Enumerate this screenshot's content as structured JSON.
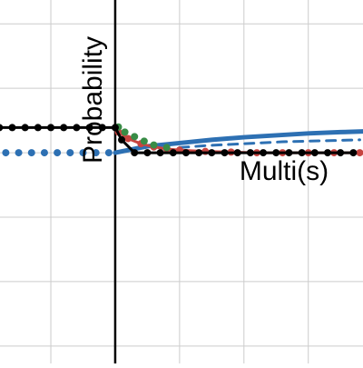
{
  "chart_data": {
    "type": "line",
    "xlabel": "Multi(s)",
    "ylabel": "Probability",
    "xlim": [
      -1.79,
      3.85
    ],
    "ylim": [
      -3.27,
      2.37
    ],
    "xticks": [
      -1,
      0,
      1,
      2,
      3
    ],
    "yticks": [
      -3,
      -2,
      -1,
      0,
      1,
      2
    ],
    "grid": true,
    "series": [
      {
        "color": "#2d70b3",
        "style": "dots",
        "x": [
          -1.7,
          -1.5,
          -1.3,
          -1.1,
          -0.9,
          -0.7,
          -0.5,
          -0.3,
          -0.1
        ],
        "values": [
          0,
          0,
          0,
          0,
          0,
          0,
          0,
          0,
          0
        ]
      },
      {
        "color": "#2d70b3",
        "style": "line",
        "x": [
          0,
          0.5,
          1,
          1.5,
          2,
          2.5,
          3,
          3.5,
          3.85
        ],
        "values": [
          0,
          0.1,
          0.15,
          0.2,
          0.24,
          0.27,
          0.3,
          0.32,
          0.33
        ]
      },
      {
        "color": "#2d70b3",
        "style": "dashed",
        "x": [
          1.0,
          1.4,
          1.8,
          2.2,
          2.6,
          3.0,
          3.4,
          3.8
        ],
        "values": [
          0.08,
          0.11,
          0.13,
          0.15,
          0.17,
          0.18,
          0.19,
          0.2
        ]
      },
      {
        "color": "#c74440",
        "style": "both",
        "x": [
          0.05,
          0.2,
          0.4,
          0.6,
          0.8,
          1.0,
          1.4,
          1.8,
          2.2,
          2.6,
          3.0,
          3.4,
          3.8
        ],
        "values": [
          0.32,
          0.22,
          0.14,
          0.09,
          0.06,
          0.04,
          0.02,
          0.01,
          0,
          0,
          0,
          0,
          0
        ]
      },
      {
        "color": "#388c46",
        "style": "dots",
        "x": [
          0.05,
          0.15,
          0.3,
          0.45,
          0.6,
          0.8
        ],
        "values": [
          0.4,
          0.32,
          0.25,
          0.18,
          0.12,
          0.08
        ]
      },
      {
        "color": "#000000",
        "style": "both",
        "x": [
          -1.8,
          -1.6,
          -1.4,
          -1.2,
          -1.0,
          -0.8,
          -0.6,
          -0.4,
          -0.2,
          0,
          0.1,
          0.3,
          0.5,
          0.7,
          0.9,
          1.1,
          1.3,
          1.5,
          1.7,
          1.9,
          2.1,
          2.3,
          2.5,
          2.7,
          2.9,
          3.1,
          3.3,
          3.5,
          3.7
        ],
        "values": [
          0.39,
          0.39,
          0.39,
          0.39,
          0.39,
          0.39,
          0.39,
          0.39,
          0.39,
          0.39,
          0.2,
          0,
          0,
          0,
          0,
          0,
          0,
          0,
          0,
          0,
          0,
          0,
          0,
          0,
          0,
          0,
          0,
          0,
          0
        ]
      }
    ]
  }
}
